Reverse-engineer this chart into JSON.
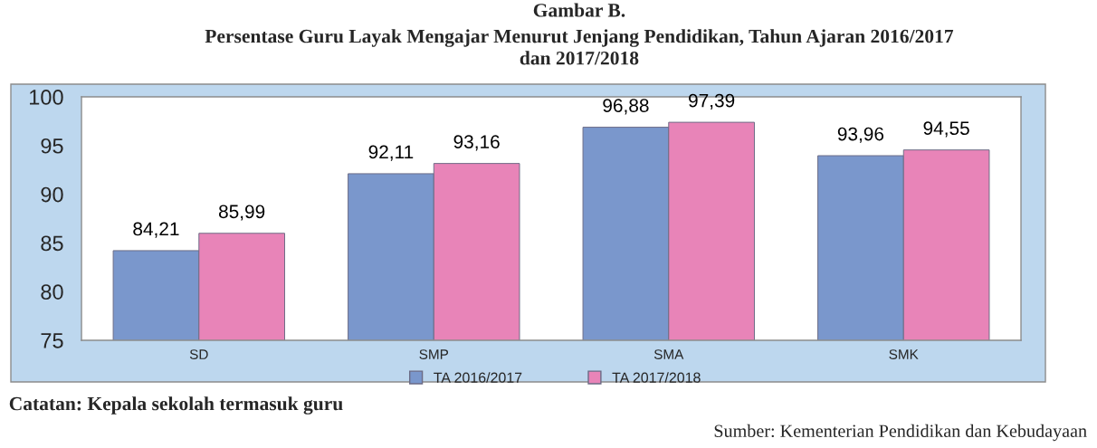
{
  "chart_data": {
    "type": "bar",
    "title": "Gambar B.",
    "subtitle": "Persentase Guru Layak Mengajar Menurut Jenjang Pendidikan, Tahun Ajaran 2016/2017\ndan 2017/2018",
    "categories": [
      "SD",
      "SMP",
      "SMA",
      "SMK"
    ],
    "series": [
      {
        "name": "TA 2016/2017",
        "color": "#7a97cc",
        "values": [
          84.21,
          92.11,
          96.88,
          93.96
        ],
        "value_labels": [
          "84,21",
          "92,11",
          "96,88",
          "93,96"
        ]
      },
      {
        "name": "TA 2017/2018",
        "color": "#e884b8",
        "values": [
          85.99,
          93.16,
          97.39,
          94.55
        ],
        "value_labels": [
          "85,99",
          "93,16",
          "97,39",
          "94,55"
        ]
      }
    ],
    "ylim": [
      75,
      100
    ],
    "yticks": [
      75,
      80,
      85,
      90,
      95,
      100
    ],
    "legend": "bottom",
    "annotations": [
      "Catatan: Kepala sekolah termasuk guru",
      "Sumber: Kementerian Pendidikan dan Kebudayaan"
    ]
  }
}
